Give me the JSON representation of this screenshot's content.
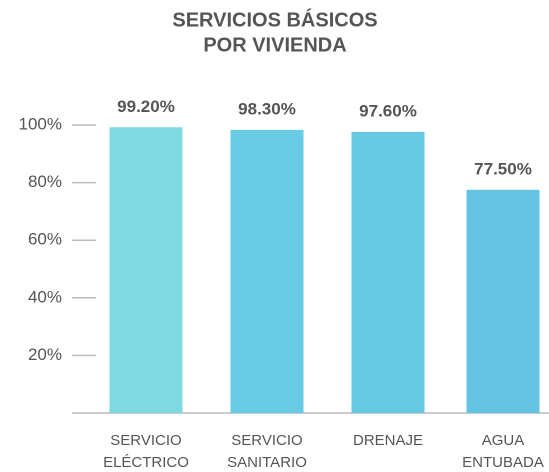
{
  "chart_data": {
    "type": "bar",
    "title": [
      "SERVICIOS BÁSICOS",
      "POR VIVIENDA"
    ],
    "categories": [
      [
        "SERVICIO",
        "ELÉCTRICO"
      ],
      [
        "SERVICIO",
        "SANITARIO"
      ],
      [
        "DRENAJE"
      ],
      [
        "AGUA",
        "ENTUBADA"
      ]
    ],
    "values": [
      99.2,
      98.3,
      97.6,
      77.5
    ],
    "value_labels": [
      "99.20%",
      "98.30%",
      "97.60%",
      "77.50%"
    ],
    "colors": [
      "#7fd9e1",
      "#66cbe3",
      "#66c8e3",
      "#66c4e3"
    ],
    "ylim": [
      0,
      100
    ],
    "yticks": [
      {
        "value": 20,
        "label": "20%"
      },
      {
        "value": 40,
        "label": "40%"
      },
      {
        "value": 60,
        "label": "60%"
      },
      {
        "value": 80,
        "label": "80%"
      },
      {
        "value": 100,
        "label": "100%"
      }
    ]
  }
}
